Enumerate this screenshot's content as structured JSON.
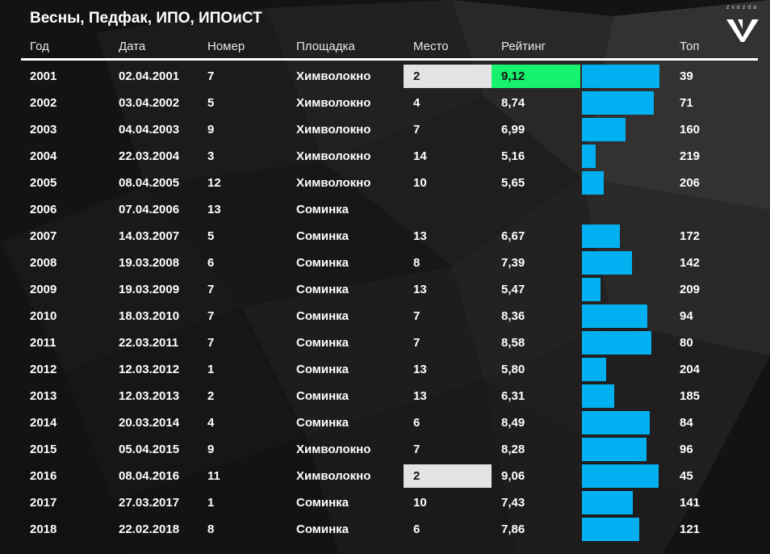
{
  "title": "Весны, Педфак, ИПО, ИПОиСТ",
  "logo": {
    "sup": "zvezda"
  },
  "colors": {
    "bar": "#00b0f0",
    "best_rating": "#16f26e",
    "best_place": "#e3e3e5",
    "rule": "#ffffff"
  },
  "columns": {
    "year": "Год",
    "date": "Дата",
    "number": "Номер",
    "venue": "Площадка",
    "place": "Место",
    "rating": "Рейтинг",
    "top": "Топ"
  },
  "rows": [
    {
      "year": "2001",
      "date": "02.04.2001",
      "number": "7",
      "venue": "Химволокно",
      "place": "2",
      "rating": "9,12",
      "top": "39",
      "highlight_place": true,
      "highlight_rating": true
    },
    {
      "year": "2002",
      "date": "03.04.2002",
      "number": "5",
      "venue": "Химволокно",
      "place": "4",
      "rating": "8,74",
      "top": "71"
    },
    {
      "year": "2003",
      "date": "04.04.2003",
      "number": "9",
      "venue": "Химволокно",
      "place": "7",
      "rating": "6,99",
      "top": "160"
    },
    {
      "year": "2004",
      "date": "22.03.2004",
      "number": "3",
      "venue": "Химволокно",
      "place": "14",
      "rating": "5,16",
      "top": "219"
    },
    {
      "year": "2005",
      "date": "08.04.2005",
      "number": "12",
      "venue": "Химволокно",
      "place": "10",
      "rating": "5,65",
      "top": "206"
    },
    {
      "year": "2006",
      "date": "07.04.2006",
      "number": "13",
      "venue": "Соминка",
      "place": "",
      "rating": "",
      "top": ""
    },
    {
      "year": "2007",
      "date": "14.03.2007",
      "number": "5",
      "venue": "Соминка",
      "place": "13",
      "rating": "6,67",
      "top": "172"
    },
    {
      "year": "2008",
      "date": "19.03.2008",
      "number": "6",
      "venue": "Соминка",
      "place": "8",
      "rating": "7,39",
      "top": "142"
    },
    {
      "year": "2009",
      "date": "19.03.2009",
      "number": "7",
      "venue": "Соминка",
      "place": "13",
      "rating": "5,47",
      "top": "209"
    },
    {
      "year": "2010",
      "date": "18.03.2010",
      "number": "7",
      "venue": "Соминка",
      "place": "7",
      "rating": "8,36",
      "top": "94"
    },
    {
      "year": "2011",
      "date": "22.03.2011",
      "number": "7",
      "venue": "Соминка",
      "place": "7",
      "rating": "8,58",
      "top": "80"
    },
    {
      "year": "2012",
      "date": "12.03.2012",
      "number": "1",
      "venue": "Соминка",
      "place": "13",
      "rating": "5,80",
      "top": "204"
    },
    {
      "year": "2013",
      "date": "12.03.2013",
      "number": "2",
      "venue": "Соминка",
      "place": "13",
      "rating": "6,31",
      "top": "185"
    },
    {
      "year": "2014",
      "date": "20.03.2014",
      "number": "4",
      "venue": "Соминка",
      "place": "6",
      "rating": "8,49",
      "top": "84"
    },
    {
      "year": "2015",
      "date": "05.04.2015",
      "number": "9",
      "venue": "Химволокно",
      "place": "7",
      "rating": "8,28",
      "top": "96"
    },
    {
      "year": "2016",
      "date": "08.04.2016",
      "number": "11",
      "venue": "Химволокно",
      "place": "2",
      "rating": "9,06",
      "top": "45",
      "highlight_place": true
    },
    {
      "year": "2017",
      "date": "27.03.2017",
      "number": "1",
      "venue": "Соминка",
      "place": "10",
      "rating": "7,43",
      "top": "141"
    },
    {
      "year": "2018",
      "date": "22.02.2018",
      "number": "8",
      "venue": "Соминка",
      "place": "6",
      "rating": "7,86",
      "top": "121"
    }
  ]
}
